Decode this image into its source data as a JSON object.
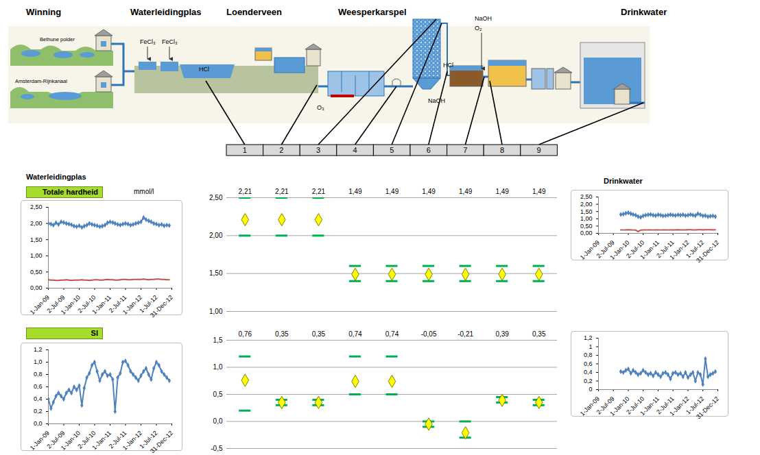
{
  "diagram": {
    "stages": [
      "Winning",
      "Waterleidingplas",
      "Loenderveen",
      "Weesperkarspel",
      "Drinkwater"
    ],
    "sources": [
      "Bethune polder",
      "Amsterdam-Rijnkanaal"
    ],
    "dosing": [
      "FeCl₃",
      "FeCl₃",
      "HCl",
      "O₃",
      "HCl",
      "NaOH",
      "NaOH",
      "O₂"
    ],
    "stations": [
      "1",
      "2",
      "3",
      "4",
      "5",
      "6",
      "7",
      "8",
      "9"
    ]
  },
  "panel_heads": {
    "left": "Waterleidingplas",
    "right": "Drinkwater"
  },
  "chart_data": [
    {
      "type": "line",
      "title": "Totale hardheid",
      "subtitle": "mmol/l",
      "x": [
        "2009-01-01",
        "2009-02-01",
        "2009-03-01",
        "2009-04-01",
        "2009-05-01",
        "2009-06-01",
        "2009-07-01",
        "2009-08-01",
        "2009-09-01",
        "2009-10-01",
        "2009-11-01",
        "2009-12-01",
        "2010-01-01",
        "2010-02-01",
        "2010-03-01",
        "2010-04-01",
        "2010-05-01",
        "2010-06-01",
        "2010-07-01",
        "2010-08-01",
        "2010-09-01",
        "2010-10-01",
        "2010-11-01",
        "2010-12-01",
        "2011-01-01",
        "2011-02-01",
        "2011-03-01",
        "2011-04-01",
        "2011-05-01",
        "2011-06-01",
        "2011-07-01",
        "2011-08-01",
        "2011-09-01",
        "2011-10-01",
        "2011-11-01",
        "2011-12-01",
        "2012-01-01",
        "2012-02-01",
        "2012-03-01",
        "2012-04-01",
        "2012-05-01",
        "2012-06-01",
        "2012-07-01",
        "2012-08-01",
        "2012-09-01",
        "2012-10-01",
        "2012-11-01",
        "2012-12-01"
      ],
      "series": [
        {
          "color": "#4f81bd",
          "marker": "diamond",
          "line_style": "solid",
          "values": [
            2.0,
            1.98,
            1.95,
            2.02,
            1.97,
            2.05,
            2.03,
            2.0,
            1.98,
            1.96,
            1.92,
            1.9,
            1.93,
            1.88,
            1.92,
            1.95,
            2.0,
            1.97,
            1.95,
            1.93,
            1.9,
            1.92,
            1.95,
            2.02,
            2.05,
            2.03,
            2.0,
            1.97,
            1.95,
            1.98,
            2.0,
            1.98,
            1.95,
            1.97,
            2.0,
            2.02,
            2.05,
            2.18,
            2.12,
            2.08,
            2.05,
            2.0,
            1.98,
            1.95,
            1.97,
            1.93,
            1.95,
            1.94
          ]
        },
        {
          "color": "#c0504d",
          "marker": "none",
          "line_style": "solid",
          "values": [
            0.26,
            0.25,
            0.25,
            0.24,
            0.24,
            0.25,
            0.25,
            0.26,
            0.25,
            0.24,
            0.25,
            0.25,
            0.25,
            0.26,
            0.25,
            0.25,
            0.24,
            0.25,
            0.26,
            0.26,
            0.25,
            0.25,
            0.26,
            0.27,
            0.26,
            0.26,
            0.25,
            0.25,
            0.26,
            0.27,
            0.27,
            0.26,
            0.26,
            0.27,
            0.27,
            0.27,
            0.27,
            0.28,
            0.27,
            0.26,
            0.27,
            0.27,
            0.28,
            0.28,
            0.27,
            0.27,
            0.26,
            0.26
          ]
        }
      ],
      "xlim": [
        "2009-01-01",
        "2012-12-31"
      ],
      "xticks": [
        {
          "value": "2009-01-01",
          "label": "1-Jan-09"
        },
        {
          "value": "2009-07-02",
          "label": "2-Jul-09"
        },
        {
          "value": "2010-01-01",
          "label": "1-Jan-10"
        },
        {
          "value": "2010-07-02",
          "label": "2-Jul-10"
        },
        {
          "value": "2011-01-01",
          "label": "1-Jan-11"
        },
        {
          "value": "2011-07-02",
          "label": "2-Jul-11"
        },
        {
          "value": "2012-01-01",
          "label": "1-Jan-12"
        },
        {
          "value": "2012-07-01",
          "label": "1-Jul-12"
        },
        {
          "value": "2012-12-31",
          "label": "31-Dec-12"
        }
      ],
      "ylim": [
        0,
        2.5
      ],
      "yticks": [
        {
          "value": 0,
          "label": "0,00"
        },
        {
          "value": 0.5,
          "label": "0,50"
        },
        {
          "value": 1,
          "label": "1,00"
        },
        {
          "value": 1.5,
          "label": "1,50"
        },
        {
          "value": 2,
          "label": "2,00"
        },
        {
          "value": 2.5,
          "label": "2,50"
        }
      ],
      "grid": false
    },
    {
      "type": "scatter",
      "marker": "diamond",
      "color": "#ffff00",
      "categories": [
        null,
        null,
        null,
        null,
        null,
        null,
        null,
        null,
        null
      ],
      "values": [
        2.21,
        2.21,
        2.21,
        1.49,
        1.49,
        1.49,
        1.49,
        1.49,
        1.49
      ],
      "value_labels": [
        "2,21",
        "2,21",
        "2,21",
        "1,49",
        "1,49",
        "1,49",
        "1,49",
        "1,49",
        "1,49"
      ],
      "lower_limit": [
        2.0,
        2.0,
        2.0,
        1.4,
        1.4,
        1.4,
        1.4,
        1.4,
        1.4
      ],
      "upper_limit": [
        2.5,
        2.5,
        2.5,
        1.6,
        1.6,
        1.6,
        1.6,
        1.6,
        1.6
      ],
      "data_labels": true,
      "tick_labels": "y",
      "grid": true,
      "ylim": [
        1,
        2.5
      ],
      "yticks": [
        {
          "value": 1,
          "label": "1,00"
        },
        {
          "value": 1.5,
          "label": "1,50"
        },
        {
          "value": 2,
          "label": "2,00"
        },
        {
          "value": 2.5,
          "label": "2,50"
        }
      ]
    },
    {
      "type": "line",
      "x": [
        "2009-10-01",
        "2009-11-01",
        "2009-12-01",
        "2010-01-01",
        "2010-02-01",
        "2010-03-01",
        "2010-04-01",
        "2010-05-01",
        "2010-06-01",
        "2010-07-01",
        "2010-08-01",
        "2010-09-01",
        "2010-10-01",
        "2010-11-01",
        "2010-12-01",
        "2011-01-01",
        "2011-02-01",
        "2011-03-01",
        "2011-04-01",
        "2011-05-01",
        "2011-06-01",
        "2011-07-01",
        "2011-08-01",
        "2011-09-01",
        "2011-10-01",
        "2011-11-01",
        "2011-12-01",
        "2012-01-01",
        "2012-02-01",
        "2012-03-01",
        "2012-04-01",
        "2012-05-01",
        "2012-06-01",
        "2012-07-01",
        "2012-08-01",
        "2012-09-01",
        "2012-10-01",
        "2012-11-01",
        "2012-12-01"
      ],
      "series": [
        {
          "color": "#4f81bd",
          "marker": "diamond",
          "line_style": "solid",
          "values": [
            1.3,
            1.32,
            1.38,
            1.42,
            1.35,
            1.3,
            1.25,
            1.15,
            1.1,
            1.2,
            1.25,
            1.28,
            1.3,
            1.25,
            1.22,
            1.28,
            1.25,
            1.2,
            1.22,
            1.25,
            1.28,
            1.25,
            1.23,
            1.27,
            1.25,
            1.28,
            1.22,
            1.25,
            1.3,
            1.25,
            1.22,
            1.35,
            1.28,
            1.2,
            1.22,
            1.15,
            1.18,
            1.2,
            1.15
          ]
        },
        {
          "color": "#c0504d",
          "marker": "none",
          "line_style": "solid",
          "values": [
            0.24,
            0.23,
            0.24,
            0.25,
            0.24,
            0.23,
            0.22,
            0.12,
            0.22,
            0.23,
            0.23,
            0.24,
            0.24,
            0.23,
            0.24,
            0.24,
            0.23,
            0.24,
            0.24,
            0.23,
            0.24,
            0.24,
            0.24,
            0.25,
            0.24,
            0.24,
            0.24,
            0.25,
            0.25,
            0.24,
            0.24,
            0.25,
            0.25,
            0.24,
            0.25,
            0.25,
            0.25,
            0.24,
            0.25
          ]
        }
      ],
      "xlim": [
        "2009-01-01",
        "2012-12-31"
      ],
      "xticks": [
        {
          "value": "2009-01-01",
          "label": "1-Jan-09"
        },
        {
          "value": "2009-07-02",
          "label": "2-Jul-09"
        },
        {
          "value": "2010-01-01",
          "label": "1-Jan-10"
        },
        {
          "value": "2010-07-02",
          "label": "2-Jul-10"
        },
        {
          "value": "2011-01-01",
          "label": "1-Jan-11"
        },
        {
          "value": "2011-07-02",
          "label": "2-Jul-11"
        },
        {
          "value": "2012-01-01",
          "label": "1-Jan-12"
        },
        {
          "value": "2012-07-01",
          "label": "1-Jul-12"
        },
        {
          "value": "2012-12-31",
          "label": "31-Dec-12"
        }
      ],
      "ylim": [
        0,
        2.5
      ],
      "yticks": [
        {
          "value": 0,
          "label": "0,00"
        },
        {
          "value": 0.5,
          "label": "0,50"
        },
        {
          "value": 1,
          "label": "1,00"
        },
        {
          "value": 1.5,
          "label": "1,50"
        },
        {
          "value": 2,
          "label": "2,00"
        },
        {
          "value": 2.5,
          "label": "2,50"
        }
      ],
      "grid": false
    },
    {
      "type": "line",
      "title": "SI",
      "x": [
        "2009-01-01",
        "2009-02-01",
        "2009-03-01",
        "2009-04-01",
        "2009-05-01",
        "2009-06-01",
        "2009-07-01",
        "2009-08-01",
        "2009-09-01",
        "2009-10-01",
        "2009-11-01",
        "2009-12-01",
        "2010-01-01",
        "2010-02-01",
        "2010-03-01",
        "2010-04-01",
        "2010-05-01",
        "2010-06-01",
        "2010-07-01",
        "2010-08-01",
        "2010-09-01",
        "2010-10-01",
        "2010-11-01",
        "2010-12-01",
        "2011-01-01",
        "2011-02-01",
        "2011-03-01",
        "2011-04-01",
        "2011-05-01",
        "2011-06-01",
        "2011-07-01",
        "2011-08-01",
        "2011-09-01",
        "2011-10-01",
        "2011-11-01",
        "2011-12-01",
        "2012-01-01",
        "2012-02-01",
        "2012-03-01",
        "2012-04-01",
        "2012-05-01",
        "2012-06-01",
        "2012-07-01",
        "2012-08-01",
        "2012-09-01",
        "2012-10-01",
        "2012-11-01",
        "2012-12-01"
      ],
      "series": [
        {
          "color": "#4f81bd",
          "marker": "diamond",
          "line_style": "solid",
          "values": [
            0.4,
            0.25,
            0.35,
            0.45,
            0.5,
            0.45,
            0.4,
            0.5,
            0.55,
            0.5,
            0.6,
            0.55,
            0.62,
            0.3,
            0.58,
            0.75,
            0.82,
            0.95,
            1.0,
            0.85,
            0.7,
            0.8,
            0.85,
            0.78,
            0.8,
            0.72,
            0.2,
            0.75,
            0.82,
            1.0,
            1.02,
            0.95,
            0.85,
            0.8,
            0.75,
            0.7,
            0.78,
            0.85,
            0.9,
            0.8,
            0.72,
            0.9,
            1.0,
            0.95,
            0.85,
            0.8,
            0.75,
            0.7
          ]
        }
      ],
      "xlim": [
        "2009-01-01",
        "2012-12-31"
      ],
      "xticks": [
        {
          "value": "2009-01-01",
          "label": "1-Jan-09"
        },
        {
          "value": "2009-07-02",
          "label": "2-Jul-09"
        },
        {
          "value": "2010-01-01",
          "label": "1-Jan-10"
        },
        {
          "value": "2010-07-02",
          "label": "2-Jul-10"
        },
        {
          "value": "2011-01-01",
          "label": "1-Jan-11"
        },
        {
          "value": "2011-07-02",
          "label": "2-Jul-11"
        },
        {
          "value": "2012-01-01",
          "label": "1-Jan-12"
        },
        {
          "value": "2012-07-01",
          "label": "1-Jul-12"
        },
        {
          "value": "2012-12-31",
          "label": "31-Dec-12"
        }
      ],
      "ylim": [
        0,
        1.2
      ],
      "yticks": [
        {
          "value": 0,
          "label": "0,0"
        },
        {
          "value": 0.2,
          "label": "0,2"
        },
        {
          "value": 0.4,
          "label": "0,4"
        },
        {
          "value": 0.6,
          "label": "0,6"
        },
        {
          "value": 0.8,
          "label": "0,8"
        },
        {
          "value": 1,
          "label": "1,0"
        },
        {
          "value": 1.2,
          "label": "1,2"
        }
      ],
      "grid": false
    },
    {
      "type": "scatter",
      "marker": "diamond",
      "color": "#ffff00",
      "categories": [
        null,
        null,
        null,
        null,
        null,
        null,
        null,
        null,
        null
      ],
      "values": [
        0.76,
        0.35,
        0.35,
        0.74,
        0.74,
        -0.05,
        -0.21,
        0.39,
        0.35
      ],
      "value_labels": [
        "0,76",
        "0,35",
        "0,35",
        "0,74",
        "0,74",
        "-0,05",
        "-0,21",
        "0,39",
        "0,35"
      ],
      "lower_limit": [
        0.2,
        0.3,
        0.3,
        0.5,
        0.5,
        -0.1,
        -0.3,
        0.35,
        0.3
      ],
      "upper_limit": [
        1.2,
        0.4,
        0.4,
        1.2,
        1.2,
        0.0,
        0.0,
        0.45,
        0.4
      ],
      "data_labels": true,
      "tick_labels": "y",
      "grid": true,
      "ylim": [
        -0.5,
        1.5
      ],
      "yticks": [
        {
          "value": -0.5,
          "label": "-0,5"
        },
        {
          "value": 0,
          "label": "0,0"
        },
        {
          "value": 0.5,
          "label": "0,5"
        },
        {
          "value": 1,
          "label": "1,0"
        },
        {
          "value": 1.5,
          "label": "1,5"
        }
      ]
    },
    {
      "type": "line",
      "x": [
        "2009-10-01",
        "2009-11-01",
        "2009-12-01",
        "2010-01-01",
        "2010-02-01",
        "2010-03-01",
        "2010-04-01",
        "2010-05-01",
        "2010-06-01",
        "2010-07-01",
        "2010-08-01",
        "2010-09-01",
        "2010-10-01",
        "2010-11-01",
        "2010-12-01",
        "2011-01-01",
        "2011-02-01",
        "2011-03-01",
        "2011-04-01",
        "2011-05-01",
        "2011-06-01",
        "2011-07-01",
        "2011-08-01",
        "2011-09-01",
        "2011-10-01",
        "2011-11-01",
        "2011-12-01",
        "2012-01-01",
        "2012-02-01",
        "2012-03-01",
        "2012-04-01",
        "2012-05-01",
        "2012-06-01",
        "2012-07-01",
        "2012-08-01",
        "2012-09-01",
        "2012-10-01",
        "2012-11-01",
        "2012-12-01"
      ],
      "series": [
        {
          "color": "#4f81bd",
          "marker": "diamond",
          "line_style": "solid",
          "values": [
            0.42,
            0.4,
            0.45,
            0.48,
            0.38,
            0.45,
            0.4,
            0.35,
            0.38,
            0.45,
            0.4,
            0.35,
            0.38,
            0.32,
            0.4,
            0.35,
            0.3,
            0.38,
            0.4,
            0.35,
            0.25,
            0.38,
            0.4,
            0.35,
            0.38,
            0.3,
            0.4,
            0.28,
            0.35,
            0.4,
            0.2,
            0.4,
            0.35,
            0.12,
            0.72,
            0.3,
            0.35,
            0.38,
            0.42
          ]
        }
      ],
      "xlim": [
        "2009-01-01",
        "2012-12-31"
      ],
      "xticks": [
        {
          "value": "2009-01-01",
          "label": "1-Jan-09"
        },
        {
          "value": "2009-07-02",
          "label": "2-Jul-09"
        },
        {
          "value": "2010-01-01",
          "label": "1-Jan-10"
        },
        {
          "value": "2010-07-02",
          "label": "2-Jul-10"
        },
        {
          "value": "2011-01-01",
          "label": "1-Jan-11"
        },
        {
          "value": "2011-07-02",
          "label": "2-Jul-11"
        },
        {
          "value": "2012-01-01",
          "label": "1-Jan-12"
        },
        {
          "value": "2012-07-01",
          "label": "1-Jul-12"
        },
        {
          "value": "2012-12-31",
          "label": "31-Dec-12"
        }
      ],
      "ylim": [
        0,
        1.2
      ],
      "yticks": [
        0,
        {
          "value": 0.2,
          "label": "0,2"
        },
        {
          "value": 0.4,
          "label": "0,4"
        },
        {
          "value": 0.6,
          "label": "0,6"
        },
        {
          "value": 0.8,
          "label": "0,8"
        },
        1,
        {
          "value": 1.2,
          "label": "1,2"
        }
      ],
      "grid": false
    }
  ]
}
